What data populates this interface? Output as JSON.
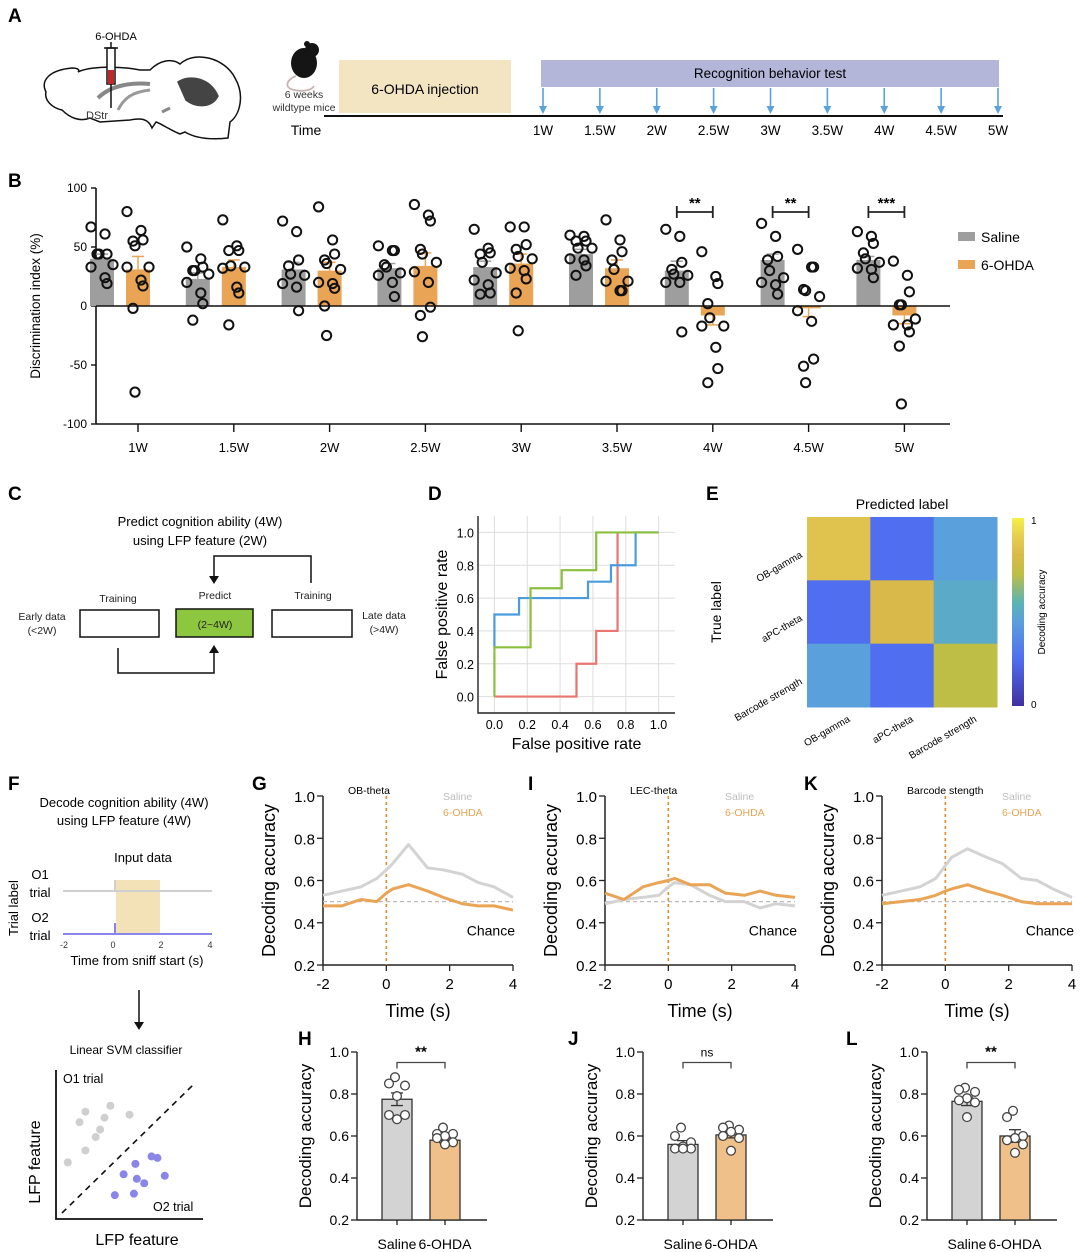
{
  "colors": {
    "saline": "#9e9e9e",
    "saline_light": "#d3d3d3",
    "ohda": "#e9a455",
    "ohda_light": "#f0c08a",
    "injection_box": "#f3e4c2",
    "test_box": "#b3b5d9",
    "arrow_blue": "#5aa2dc",
    "roc_blue": "#4a9be0",
    "roc_green": "#8cbf3f",
    "roc_red": "#e8766e",
    "predict_green": "#8dc63f",
    "o2_purple": "#8a85ea",
    "o1_gray": "#cfcfcf"
  },
  "panel_labels": [
    "A",
    "B",
    "C",
    "D",
    "E",
    "F",
    "G",
    "H",
    "I",
    "J",
    "K",
    "L"
  ],
  "panelA": {
    "drug_label": "6-OHDA",
    "region_label": "DStr",
    "mice_label_1": "6 weeks",
    "mice_label_2": "wildtype mice",
    "injection_label": "6-OHDA injection",
    "test_label": "Recognition behavior test",
    "time_label": "Time",
    "timepoints": [
      "1W",
      "1.5W",
      "2W",
      "2.5W",
      "3W",
      "3.5W",
      "4W",
      "4.5W",
      "5W"
    ]
  },
  "panelC": {
    "title_1": "Predict cognition ability (4W)",
    "title_2": "using LFP feature (2W)",
    "early_1": "Early data",
    "early_2": "(<2W)",
    "late_1": "Late data",
    "late_2": "(>4W)",
    "training_left": "Training",
    "predict": "Predict",
    "training_right": "Training",
    "predict_box": "(2~4W)"
  },
  "panelF": {
    "title_1": "Decode cognition ability (4W)",
    "title_2": "using LFP feature (4W)",
    "input_title": "Input data",
    "o1_1": "O1",
    "o1_2": "trial",
    "o2_1": "O2",
    "o2_2": "trial",
    "ylabel": "Trial label",
    "xticks": [
      "-2",
      "0",
      "2",
      "4"
    ],
    "xlabel": "Time from sniff start (s)",
    "svm_title": "Linear SVM classifier",
    "svm_o1": "O1 trial",
    "svm_o2": "O2 trial",
    "svm_xlabel": "LFP feature",
    "svm_ylabel": "LFP feature",
    "o1_points": [
      [
        0.08,
        0.38
      ],
      [
        0.2,
        0.72
      ],
      [
        0.16,
        0.65
      ],
      [
        0.37,
        0.76
      ],
      [
        0.33,
        0.68
      ],
      [
        0.5,
        0.7
      ],
      [
        0.27,
        0.55
      ],
      [
        0.3,
        0.6
      ],
      [
        0.2,
        0.46
      ]
    ],
    "o2_points": [
      [
        0.4,
        0.16
      ],
      [
        0.46,
        0.3
      ],
      [
        0.54,
        0.37
      ],
      [
        0.55,
        0.27
      ],
      [
        0.6,
        0.24
      ],
      [
        0.65,
        0.42
      ],
      [
        0.69,
        0.41
      ],
      [
        0.74,
        0.29
      ],
      [
        0.53,
        0.17
      ]
    ]
  },
  "chart_data": [
    {
      "id": "B",
      "type": "bar",
      "ylabel": "Discrimination index (%)",
      "ylim": [
        -100,
        100
      ],
      "yticks": [
        100,
        50,
        0,
        -50,
        -100
      ],
      "categories": [
        "1W",
        "1.5W",
        "2W",
        "2.5W",
        "3W",
        "3.5W",
        "4W",
        "4.5W",
        "5W"
      ],
      "legend": [
        "Saline",
        "6-OHDA"
      ],
      "legend_position": "right",
      "series": [
        {
          "name": "Saline",
          "values": [
            40,
            23,
            31,
            32,
            33,
            44,
            30,
            39,
            39
          ],
          "sem": [
            4,
            5,
            6,
            4,
            5,
            4,
            8,
            5,
            3
          ],
          "points": [
            [
              67,
              61,
              44,
              44,
              44,
              35,
              33,
              24,
              19
            ],
            [
              50,
              40,
              33,
              30,
              30,
              27,
              20,
              11,
              2,
              -12
            ],
            [
              72,
              63,
              39,
              34,
              27,
              26,
              19,
              16,
              -4
            ],
            [
              51,
              47,
              47,
              35,
              33,
              28,
              26,
              20,
              8
            ],
            [
              65,
              49,
              45,
              44,
              37,
              28,
              22,
              18,
              11,
              10
            ],
            [
              60,
              59,
              55,
              55,
              49,
              49,
              40,
              39,
              34,
              26
            ],
            [
              65,
              59,
              37,
              31,
              27,
              26,
              20,
              20,
              -22
            ],
            [
              70,
              59,
              42,
              39,
              30,
              24,
              20,
              18,
              10
            ],
            [
              63,
              59,
              53,
              45,
              40,
              37,
              32,
              31,
              24
            ]
          ]
        },
        {
          "name": "6-OHDA",
          "values": [
            31,
            33,
            30,
            34,
            36,
            32,
            -8,
            -2,
            -8
          ],
          "sem": [
            11,
            6,
            7,
            11,
            8,
            7,
            8,
            7,
            7
          ],
          "points": [
            [
              80,
              64,
              56,
              55,
              51,
              33,
              33,
              22,
              17,
              -2,
              -73
            ],
            [
              73,
              51,
              47,
              47,
              34,
              33,
              32,
              16,
              11,
              -16
            ],
            [
              84,
              56,
              44,
              39,
              36,
              31,
              20,
              19,
              15,
              0,
              -25
            ],
            [
              86,
              77,
              72,
              48,
              44,
              37,
              29,
              20,
              -1,
              -8,
              -26
            ],
            [
              67,
              67,
              52,
              48,
              42,
              40,
              32,
              30,
              23,
              11,
              -21
            ],
            [
              73,
              56,
              46,
              39,
              31,
              21,
              21,
              13,
              13
            ],
            [
              46,
              25,
              19,
              2,
              -10,
              -17,
              -17,
              -35,
              -53,
              -65
            ],
            [
              48,
              33,
              33,
              14,
              13,
              8,
              -4,
              -13,
              -45,
              -51,
              -65
            ],
            [
              38,
              26,
              12,
              1,
              1,
              -11,
              -16,
              -16,
              -22,
              -34,
              -83
            ]
          ]
        }
      ],
      "significance": [
        {
          "category": "4W",
          "label": "**"
        },
        {
          "category": "4.5W",
          "label": "**"
        },
        {
          "category": "5W",
          "label": "***"
        }
      ]
    },
    {
      "id": "D",
      "type": "line",
      "xlabel": "False positive rate",
      "ylabel": "False positive rate",
      "xlim": [
        -0.1,
        1.1
      ],
      "ylim": [
        -0.1,
        1.1
      ],
      "xticks": [
        "0.0",
        "0.2",
        "0.4",
        "0.6",
        "0.8",
        "1.0"
      ],
      "yticks": [
        "0.0",
        "0.2",
        "0.4",
        "0.6",
        "0.8",
        "1.0"
      ],
      "grid": true,
      "series": [
        {
          "name": "blue",
          "color": "#4a9be0",
          "points": [
            [
              0,
              0.3
            ],
            [
              0,
              0.5
            ],
            [
              0.15,
              0.5
            ],
            [
              0.15,
              0.6
            ],
            [
              0.57,
              0.6
            ],
            [
              0.57,
              0.7
            ],
            [
              0.71,
              0.7
            ],
            [
              0.71,
              0.8
            ],
            [
              0.86,
              0.8
            ],
            [
              0.86,
              1.0
            ],
            [
              1.0,
              1.0
            ]
          ]
        },
        {
          "name": "green",
          "color": "#8cbf3f",
          "points": [
            [
              0,
              0
            ],
            [
              0,
              0.3
            ],
            [
              0.22,
              0.3
            ],
            [
              0.22,
              0.66
            ],
            [
              0.41,
              0.66
            ],
            [
              0.41,
              0.77
            ],
            [
              0.62,
              0.77
            ],
            [
              0.62,
              1.0
            ],
            [
              1.0,
              1.0
            ]
          ]
        },
        {
          "name": "red",
          "color": "#e8766e",
          "points": [
            [
              0,
              0
            ],
            [
              0.5,
              0
            ],
            [
              0.5,
              0.2
            ],
            [
              0.62,
              0.2
            ],
            [
              0.62,
              0.4
            ],
            [
              0.75,
              0.4
            ],
            [
              0.75,
              1.0
            ]
          ]
        }
      ]
    },
    {
      "id": "E",
      "type": "heatmap",
      "title": "Predicted label",
      "ylabel": "True label",
      "colorbar_label": "Decoding accuracy",
      "colorbar_ticks": [
        "0",
        "1"
      ],
      "x_categories": [
        "OB-gamma",
        "aPC-theta",
        "Barcode strength"
      ],
      "y_categories": [
        "OB-gamma",
        "aPC-theta",
        "Barcode strength"
      ],
      "values": [
        [
          0.85,
          0.25,
          0.45
        ],
        [
          0.25,
          0.8,
          0.5
        ],
        [
          0.45,
          0.25,
          0.7
        ]
      ]
    },
    {
      "id": "G",
      "type": "line",
      "title": "OB-theta",
      "xlabel": "Time (s)",
      "ylabel": "Decoding accuracy",
      "xlim": [
        -2,
        4
      ],
      "ylim": [
        0.2,
        1.0
      ],
      "xticks": [
        "-2",
        "0",
        "2",
        "4"
      ],
      "yticks": [
        "0.2",
        "0.4",
        "0.6",
        "0.8",
        "1.0"
      ],
      "chance_label": "Chance",
      "chance": 0.5,
      "legend": [
        "Saline",
        "6-OHDA"
      ],
      "x": [
        -2,
        -1.4,
        -0.8,
        -0.3,
        0,
        0.2,
        0.7,
        1.3,
        1.8,
        2.4,
        2.9,
        3.4,
        4
      ],
      "series": [
        {
          "name": "Saline",
          "values": [
            0.53,
            0.55,
            0.57,
            0.61,
            0.65,
            0.68,
            0.77,
            0.66,
            0.65,
            0.63,
            0.59,
            0.57,
            0.52
          ]
        },
        {
          "name": "6-OHDA",
          "values": [
            0.48,
            0.48,
            0.51,
            0.5,
            0.54,
            0.56,
            0.58,
            0.55,
            0.52,
            0.49,
            0.48,
            0.48,
            0.46
          ]
        }
      ]
    },
    {
      "id": "H",
      "type": "bar",
      "ylabel": "Decoding accuracy",
      "ylim": [
        0.2,
        1.0
      ],
      "yticks": [
        "0.2",
        "0.4",
        "0.6",
        "0.8",
        "1.0"
      ],
      "categories": [
        "Saline",
        "6-OHDA"
      ],
      "values": [
        0.775,
        0.58
      ],
      "sem": [
        0.03,
        0.012
      ],
      "points": [
        [
          0.88,
          0.85,
          0.84,
          0.79,
          0.7,
          0.7,
          0.68
        ],
        [
          0.64,
          0.61,
          0.61,
          0.6,
          0.59,
          0.57,
          0.56
        ]
      ],
      "significance": "**"
    },
    {
      "id": "I",
      "type": "line",
      "title": "LEC-theta",
      "xlabel": "Time (s)",
      "ylabel": "Decoding accuracy",
      "xlim": [
        -2,
        4
      ],
      "ylim": [
        0.2,
        1.0
      ],
      "xticks": [
        "-2",
        "0",
        "2",
        "4"
      ],
      "yticks": [
        "0.2",
        "0.4",
        "0.6",
        "0.8",
        "1.0"
      ],
      "chance_label": "Chance",
      "chance": 0.5,
      "legend": [
        "Saline",
        "6-OHDA"
      ],
      "x": [
        -2,
        -1.4,
        -0.8,
        -0.3,
        0,
        0.2,
        0.7,
        1.3,
        1.8,
        2.4,
        2.9,
        3.4,
        4
      ],
      "series": [
        {
          "name": "Saline",
          "values": [
            0.49,
            0.51,
            0.52,
            0.53,
            0.57,
            0.59,
            0.58,
            0.53,
            0.5,
            0.5,
            0.47,
            0.49,
            0.48
          ]
        },
        {
          "name": "6-OHDA",
          "values": [
            0.54,
            0.51,
            0.57,
            0.59,
            0.6,
            0.61,
            0.58,
            0.58,
            0.54,
            0.53,
            0.55,
            0.53,
            0.52
          ]
        }
      ]
    },
    {
      "id": "J",
      "type": "bar",
      "ylabel": "Decoding accuracy",
      "ylim": [
        0.2,
        1.0
      ],
      "yticks": [
        "0.2",
        "0.4",
        "0.6",
        "0.8",
        "1.0"
      ],
      "categories": [
        "Saline",
        "6-OHDA"
      ],
      "values": [
        0.56,
        0.605
      ],
      "sem": [
        0.018,
        0.014
      ],
      "points": [
        [
          0.64,
          0.6,
          0.57,
          0.55,
          0.54,
          0.54,
          0.54
        ],
        [
          0.65,
          0.64,
          0.63,
          0.62,
          0.6,
          0.59,
          0.53
        ]
      ],
      "significance": "ns"
    },
    {
      "id": "K",
      "type": "line",
      "title": "Barcode stength",
      "xlabel": "Time (s)",
      "ylabel": "Decoding accuracy",
      "xlim": [
        -2,
        4
      ],
      "ylim": [
        0.2,
        1.0
      ],
      "xticks": [
        "-2",
        "0",
        "2",
        "4"
      ],
      "yticks": [
        "0.2",
        "0.4",
        "0.6",
        "0.8",
        "1.0"
      ],
      "chance_label": "Chance",
      "chance": 0.5,
      "legend": [
        "Saline",
        "6-OHDA"
      ],
      "x": [
        -2,
        -1.4,
        -0.8,
        -0.3,
        0,
        0.2,
        0.7,
        1.3,
        1.8,
        2.4,
        2.9,
        3.4,
        4
      ],
      "series": [
        {
          "name": "Saline",
          "values": [
            0.53,
            0.55,
            0.57,
            0.61,
            0.67,
            0.71,
            0.75,
            0.71,
            0.68,
            0.61,
            0.6,
            0.56,
            0.52
          ]
        },
        {
          "name": "6-OHDA",
          "values": [
            0.49,
            0.5,
            0.51,
            0.53,
            0.55,
            0.56,
            0.58,
            0.55,
            0.53,
            0.5,
            0.49,
            0.49,
            0.49
          ]
        }
      ]
    },
    {
      "id": "L",
      "type": "bar",
      "ylabel": "Decoding accuracy",
      "ylim": [
        0.2,
        1.0
      ],
      "yticks": [
        "0.2",
        "0.4",
        "0.6",
        "0.8",
        "1.0"
      ],
      "categories": [
        "Saline",
        "6-OHDA"
      ],
      "values": [
        0.765,
        0.6
      ],
      "sem": [
        0.02,
        0.03
      ],
      "points": [
        [
          0.83,
          0.82,
          0.81,
          0.78,
          0.77,
          0.76,
          0.69
        ],
        [
          0.72,
          0.69,
          0.6,
          0.59,
          0.58,
          0.56,
          0.52
        ]
      ],
      "significance": "**"
    }
  ]
}
